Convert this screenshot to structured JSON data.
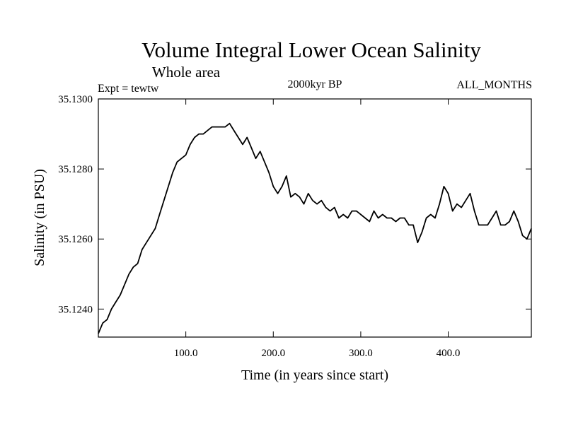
{
  "chart_data": {
    "type": "line",
    "title": "Volume Integral Lower Ocean Salinity",
    "subtitle": "Whole area",
    "experiment_label": "Expt = tewtw",
    "period_label": "2000kyr BP",
    "months_label": "ALL_MONTHS",
    "xlabel": "Time (in years since start)",
    "ylabel": "Salinity (in PSU)",
    "xlim": [
      0,
      495
    ],
    "ylim": [
      35.1232,
      35.13
    ],
    "xticks": [
      100,
      200,
      300,
      400
    ],
    "xtick_labels": [
      "100.0",
      "200.0",
      "300.0",
      "400.0"
    ],
    "yticks": [
      35.124,
      35.126,
      35.128,
      35.13
    ],
    "ytick_labels": [
      "35.1240",
      "35.1260",
      "35.1280",
      "35.1300"
    ],
    "series": [
      {
        "name": "Salinity",
        "x": [
          0,
          5,
          10,
          15,
          20,
          25,
          30,
          35,
          40,
          45,
          50,
          55,
          60,
          65,
          70,
          75,
          80,
          85,
          90,
          95,
          100,
          105,
          110,
          115,
          120,
          125,
          130,
          135,
          140,
          145,
          150,
          155,
          160,
          165,
          170,
          175,
          180,
          185,
          190,
          195,
          200,
          205,
          210,
          215,
          220,
          225,
          230,
          235,
          240,
          245,
          250,
          255,
          260,
          265,
          270,
          275,
          280,
          285,
          290,
          295,
          300,
          305,
          310,
          315,
          320,
          325,
          330,
          335,
          340,
          345,
          350,
          355,
          360,
          365,
          370,
          375,
          380,
          385,
          390,
          395,
          400,
          405,
          410,
          415,
          420,
          425,
          430,
          435,
          440,
          445,
          450,
          455,
          460,
          465,
          470,
          475,
          480,
          485,
          490,
          495
        ],
        "values": [
          35.1233,
          35.1236,
          35.1237,
          35.124,
          35.1242,
          35.1244,
          35.1247,
          35.125,
          35.1252,
          35.1253,
          35.1257,
          35.1259,
          35.1261,
          35.1263,
          35.1267,
          35.1271,
          35.1275,
          35.1279,
          35.1282,
          35.1283,
          35.1284,
          35.1287,
          35.1289,
          35.129,
          35.129,
          35.1291,
          35.1292,
          35.1292,
          35.1292,
          35.1292,
          35.1293,
          35.1291,
          35.1289,
          35.1287,
          35.1289,
          35.1286,
          35.1283,
          35.1285,
          35.1282,
          35.1279,
          35.1275,
          35.1273,
          35.1275,
          35.1278,
          35.1272,
          35.1273,
          35.1272,
          35.127,
          35.1273,
          35.1271,
          35.127,
          35.1271,
          35.1269,
          35.1268,
          35.1269,
          35.1266,
          35.1267,
          35.1266,
          35.1268,
          35.1268,
          35.1267,
          35.1266,
          35.1265,
          35.1268,
          35.1266,
          35.1267,
          35.1266,
          35.1266,
          35.1265,
          35.1266,
          35.1266,
          35.1264,
          35.1264,
          35.1259,
          35.1262,
          35.1266,
          35.1267,
          35.1266,
          35.127,
          35.1275,
          35.1273,
          35.1268,
          35.127,
          35.1269,
          35.1271,
          35.1273,
          35.1268,
          35.1264,
          35.1264,
          35.1264,
          35.1266,
          35.1268,
          35.1264,
          35.1264,
          35.1265,
          35.1268,
          35.1265,
          35.1261,
          35.126,
          35.1263
        ]
      }
    ],
    "grid": false
  },
  "colors": {
    "line": "#000000",
    "background": "#ffffff"
  }
}
